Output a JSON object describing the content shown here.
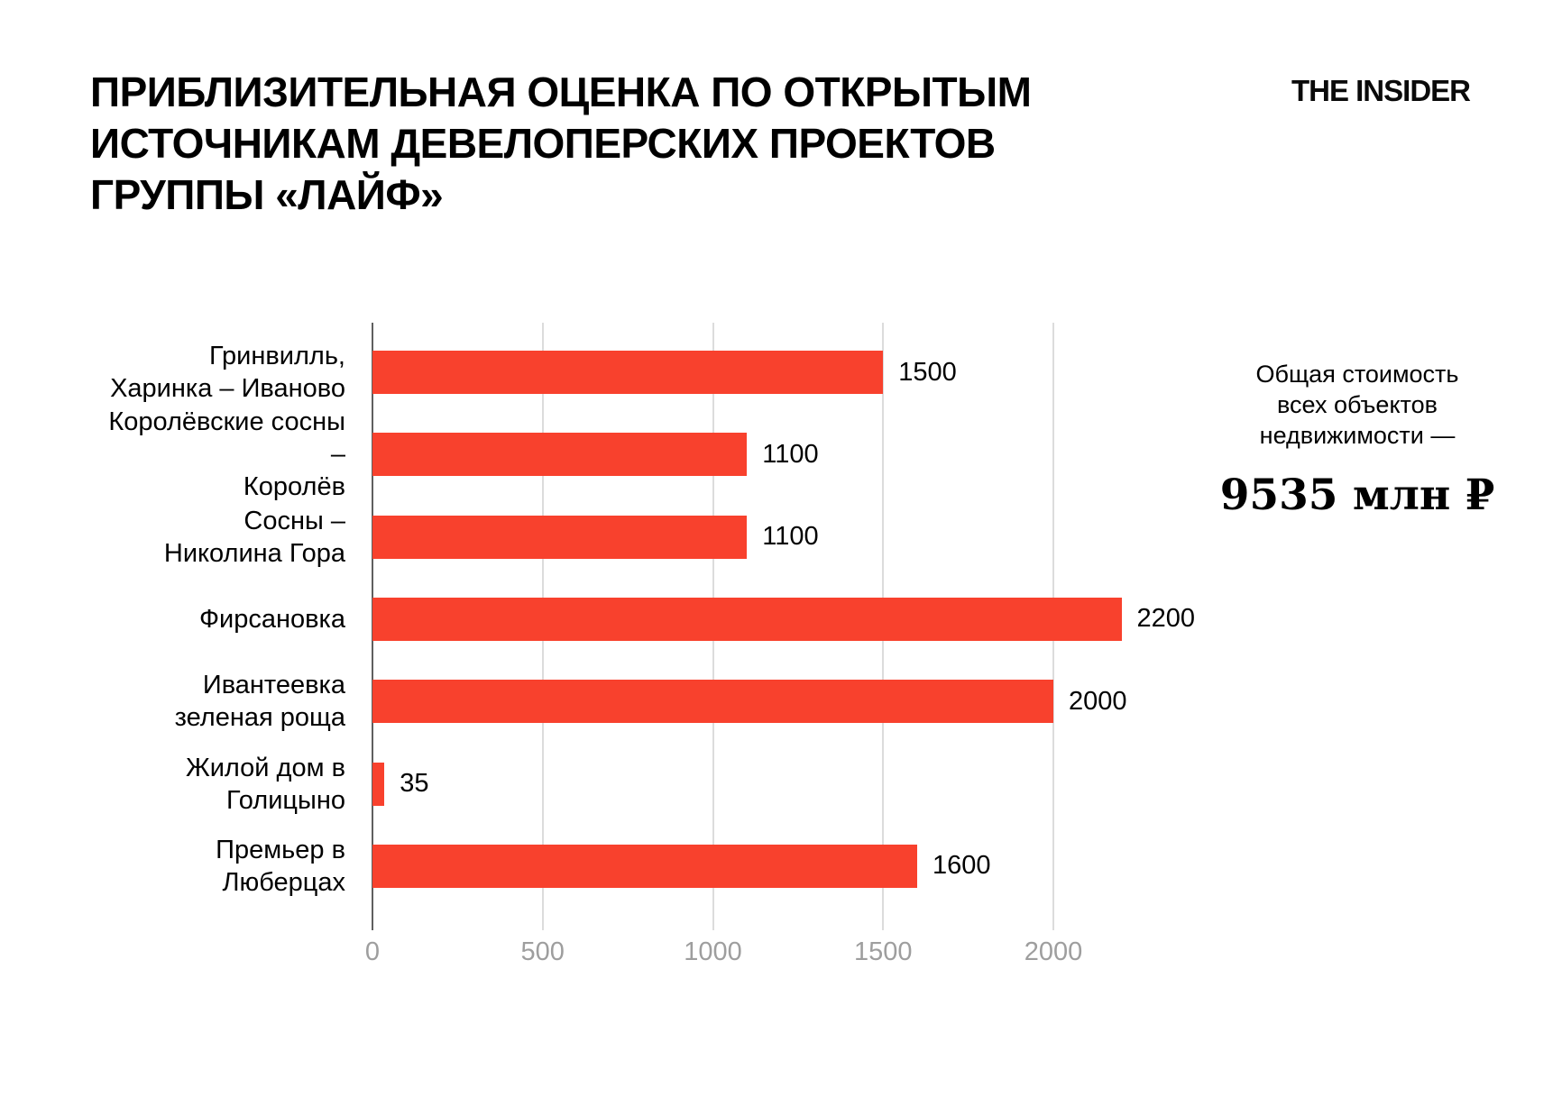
{
  "header": {
    "title": "ПРИБЛИЗИТЕЛЬНАЯ ОЦЕНКА ПО ОТКРЫТЫМ\nИСТОЧНИКАМ ДЕВЕЛОПЕРСКИХ ПРОЕКТОВ\nГРУППЫ «ЛАЙФ»",
    "logo": "THE INSIDER"
  },
  "annotation": {
    "label": "Общая стоимость\nвсех объектов\nнедвижимости —",
    "total": "9535 млн ₽"
  },
  "colors": {
    "bar": "#F8412D",
    "axis_line": "#5f5f5f",
    "gridline": "#dcdcdc",
    "tick_label": "#9e9e9e",
    "text": "#000000",
    "background": "#ffffff"
  },
  "chart_data": {
    "type": "bar",
    "orientation": "horizontal",
    "title": "Приблизительная оценка по открытым источникам девелоперских проектов группы «Лайф»",
    "categories": [
      "Гринвилль,\nХаринка – Иваново",
      "Королёвские сосны –\nКоролёв",
      "Сосны –\nНиколина Гора",
      "Фирсановка",
      "Ивантеевка\nзеленая роща",
      "Жилой дом в Голицыно",
      "Премьер в Люберцах"
    ],
    "values": [
      1500,
      1100,
      1100,
      2200,
      2000,
      35,
      1600
    ],
    "value_labels": [
      "1500",
      "1100",
      "1100",
      "2200",
      "2000",
      "35",
      "1600"
    ],
    "x_ticks": [
      0,
      500,
      1000,
      1500,
      2000
    ],
    "xlim": [
      0,
      2300
    ],
    "unit": "млн ₽",
    "grid": "vertical",
    "legend": "none",
    "total_note": "Общая стоимость всех объектов недвижимости — 9535 млн ₽"
  }
}
